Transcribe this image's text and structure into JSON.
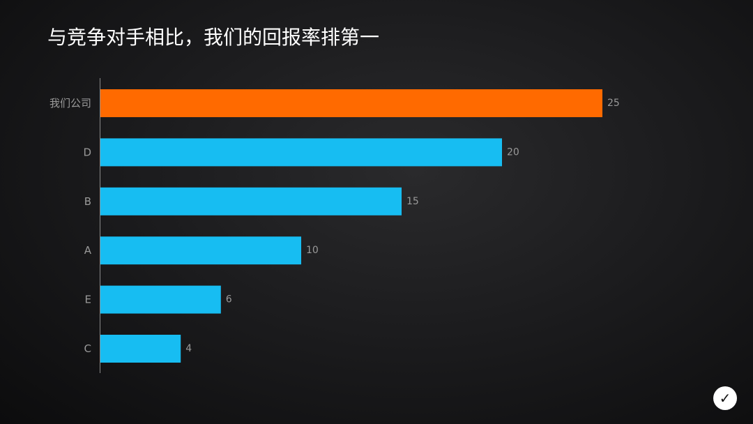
{
  "title": "与竞争对手相比，我们的回报率排第一",
  "chart_data": {
    "type": "bar",
    "orientation": "horizontal",
    "categories": [
      "我们公司",
      "D",
      "B",
      "A",
      "E",
      "C"
    ],
    "values": [
      25,
      20,
      15,
      10,
      6,
      4
    ],
    "highlight_index": 0,
    "highlight_color": "#ff6a00",
    "bar_color": "#17bdf2",
    "label_color": "#9a9a9a",
    "grid": false,
    "data_labels": true
  },
  "badge": {
    "icon": "check-icon",
    "glyph": "✓"
  }
}
